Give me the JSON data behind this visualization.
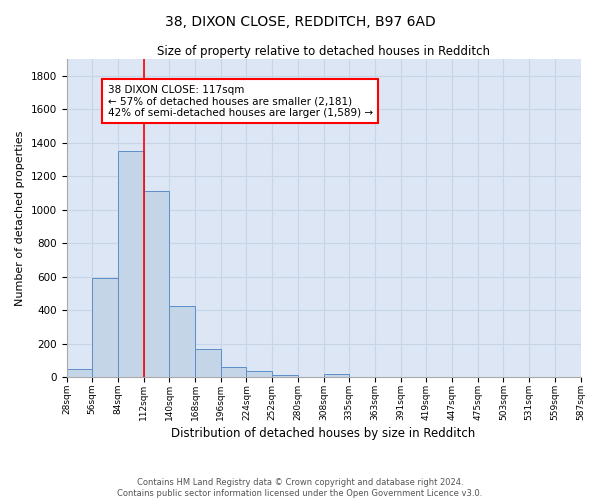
{
  "title1": "38, DIXON CLOSE, REDDITCH, B97 6AD",
  "title2": "Size of property relative to detached houses in Redditch",
  "xlabel": "Distribution of detached houses by size in Redditch",
  "ylabel": "Number of detached properties",
  "bar_values": [
    50,
    595,
    1350,
    1115,
    425,
    170,
    60,
    40,
    15,
    0,
    20,
    0,
    0,
    0,
    0,
    0,
    0,
    0,
    0,
    0
  ],
  "bin_labels": [
    "28sqm",
    "56sqm",
    "84sqm",
    "112sqm",
    "140sqm",
    "168sqm",
    "196sqm",
    "224sqm",
    "252sqm",
    "280sqm",
    "308sqm",
    "335sqm",
    "363sqm",
    "391sqm",
    "419sqm",
    "447sqm",
    "475sqm",
    "503sqm",
    "531sqm",
    "559sqm",
    "587sqm"
  ],
  "bar_color": "#c5d5e8",
  "bar_edge_color": "#5b8fc9",
  "vline_x": 3.0,
  "vline_color": "red",
  "annotation_text": "38 DIXON CLOSE: 117sqm\n← 57% of detached houses are smaller (2,181)\n42% of semi-detached houses are larger (1,589) →",
  "annotation_box_color": "white",
  "annotation_box_edge": "red",
  "ylim": [
    0,
    1900
  ],
  "yticks": [
    0,
    200,
    400,
    600,
    800,
    1000,
    1200,
    1400,
    1600,
    1800
  ],
  "grid_color": "#c8d4e8",
  "background_color": "#dce6f5",
  "footer_text": "Contains HM Land Registry data © Crown copyright and database right 2024.\nContains public sector information licensed under the Open Government Licence v3.0.",
  "fig_width": 6.0,
  "fig_height": 5.0,
  "num_bins": 20
}
